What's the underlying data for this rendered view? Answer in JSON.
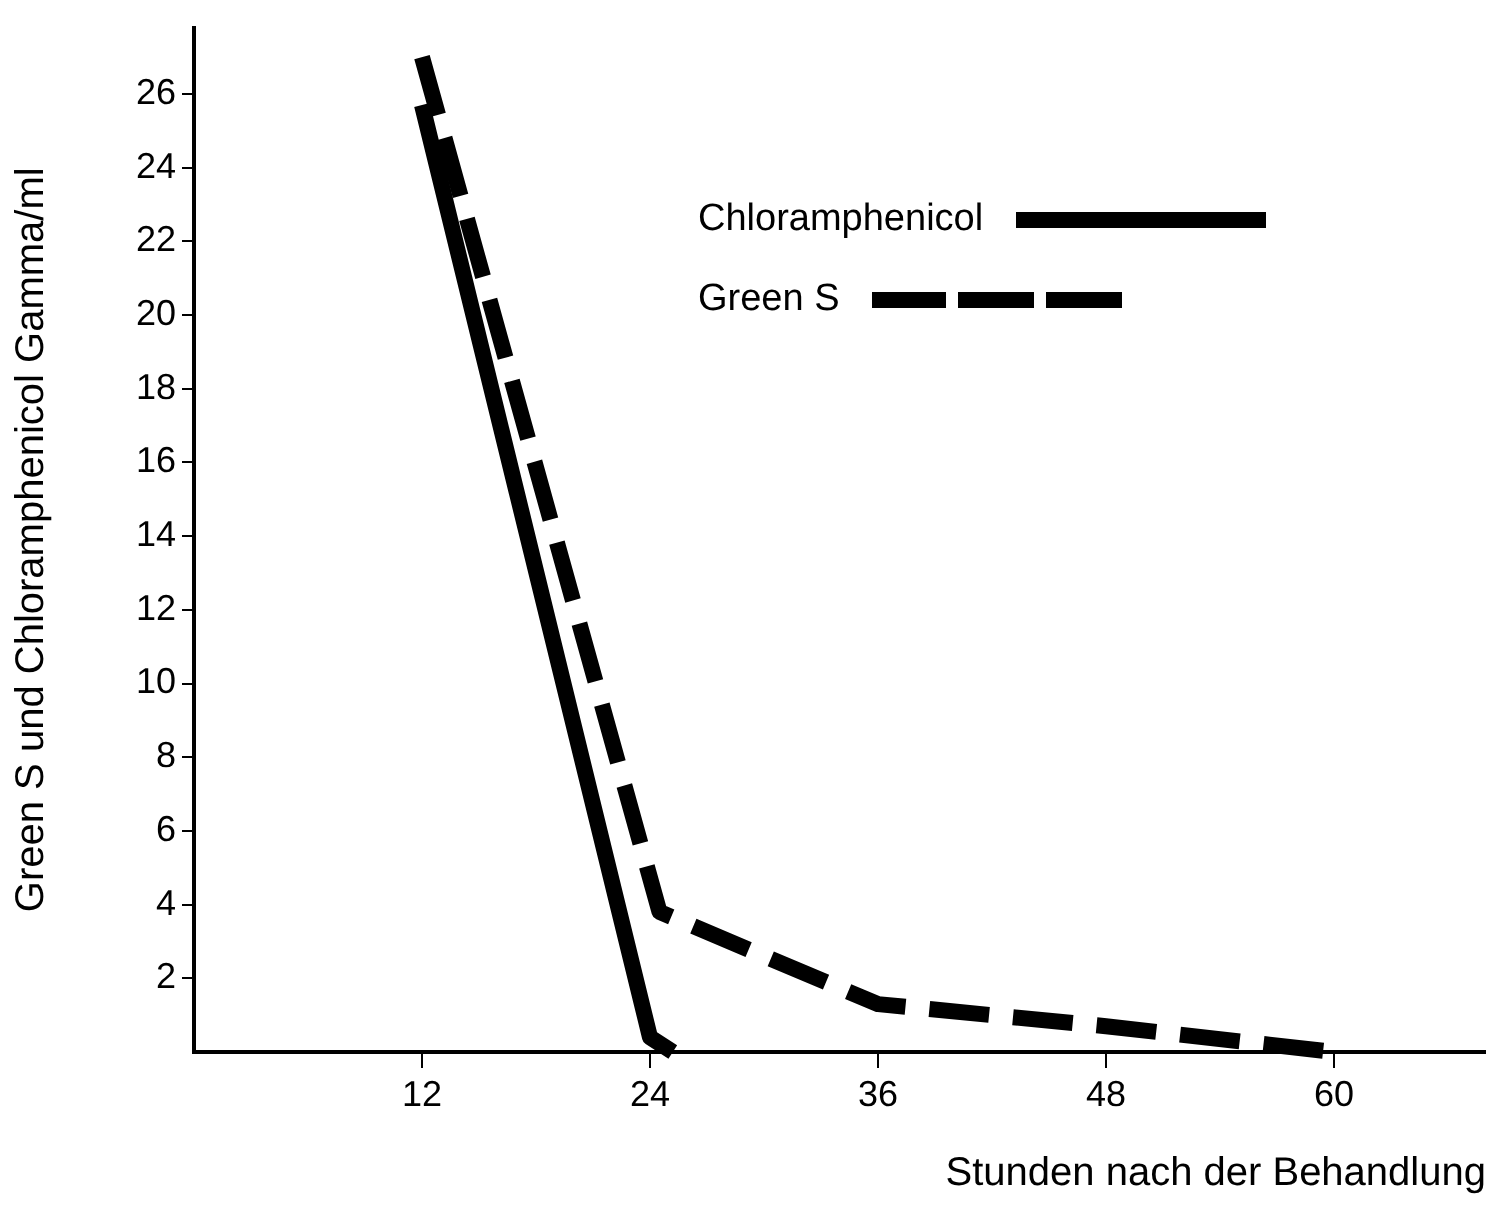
{
  "chart_data": {
    "type": "line",
    "xlabel": "Stunden nach der Behandlung",
    "ylabel": "Green S und Chloramphenicol Gamma/ml",
    "xlim": [
      0,
      68
    ],
    "xticks": [
      12,
      24,
      36,
      48,
      60
    ],
    "ylim": [
      0,
      27.8
    ],
    "yticks": [
      2,
      4,
      6,
      8,
      10,
      12,
      14,
      16,
      18,
      20,
      22,
      24,
      26
    ],
    "grid": false,
    "legend": "top right",
    "marker": "none",
    "series": [
      {
        "name": "Chloramphenicol",
        "color": "#000000",
        "line_style": "solid",
        "x": [
          12,
          24,
          25.2
        ],
        "values": [
          25.7,
          0.4,
          0
        ]
      },
      {
        "name": "Green S",
        "color": "#000000",
        "line_style": "dashed",
        "x": [
          12,
          24.5,
          36,
          48,
          60
        ],
        "values": [
          27,
          3.8,
          1.3,
          0.7,
          0
        ]
      }
    ]
  }
}
